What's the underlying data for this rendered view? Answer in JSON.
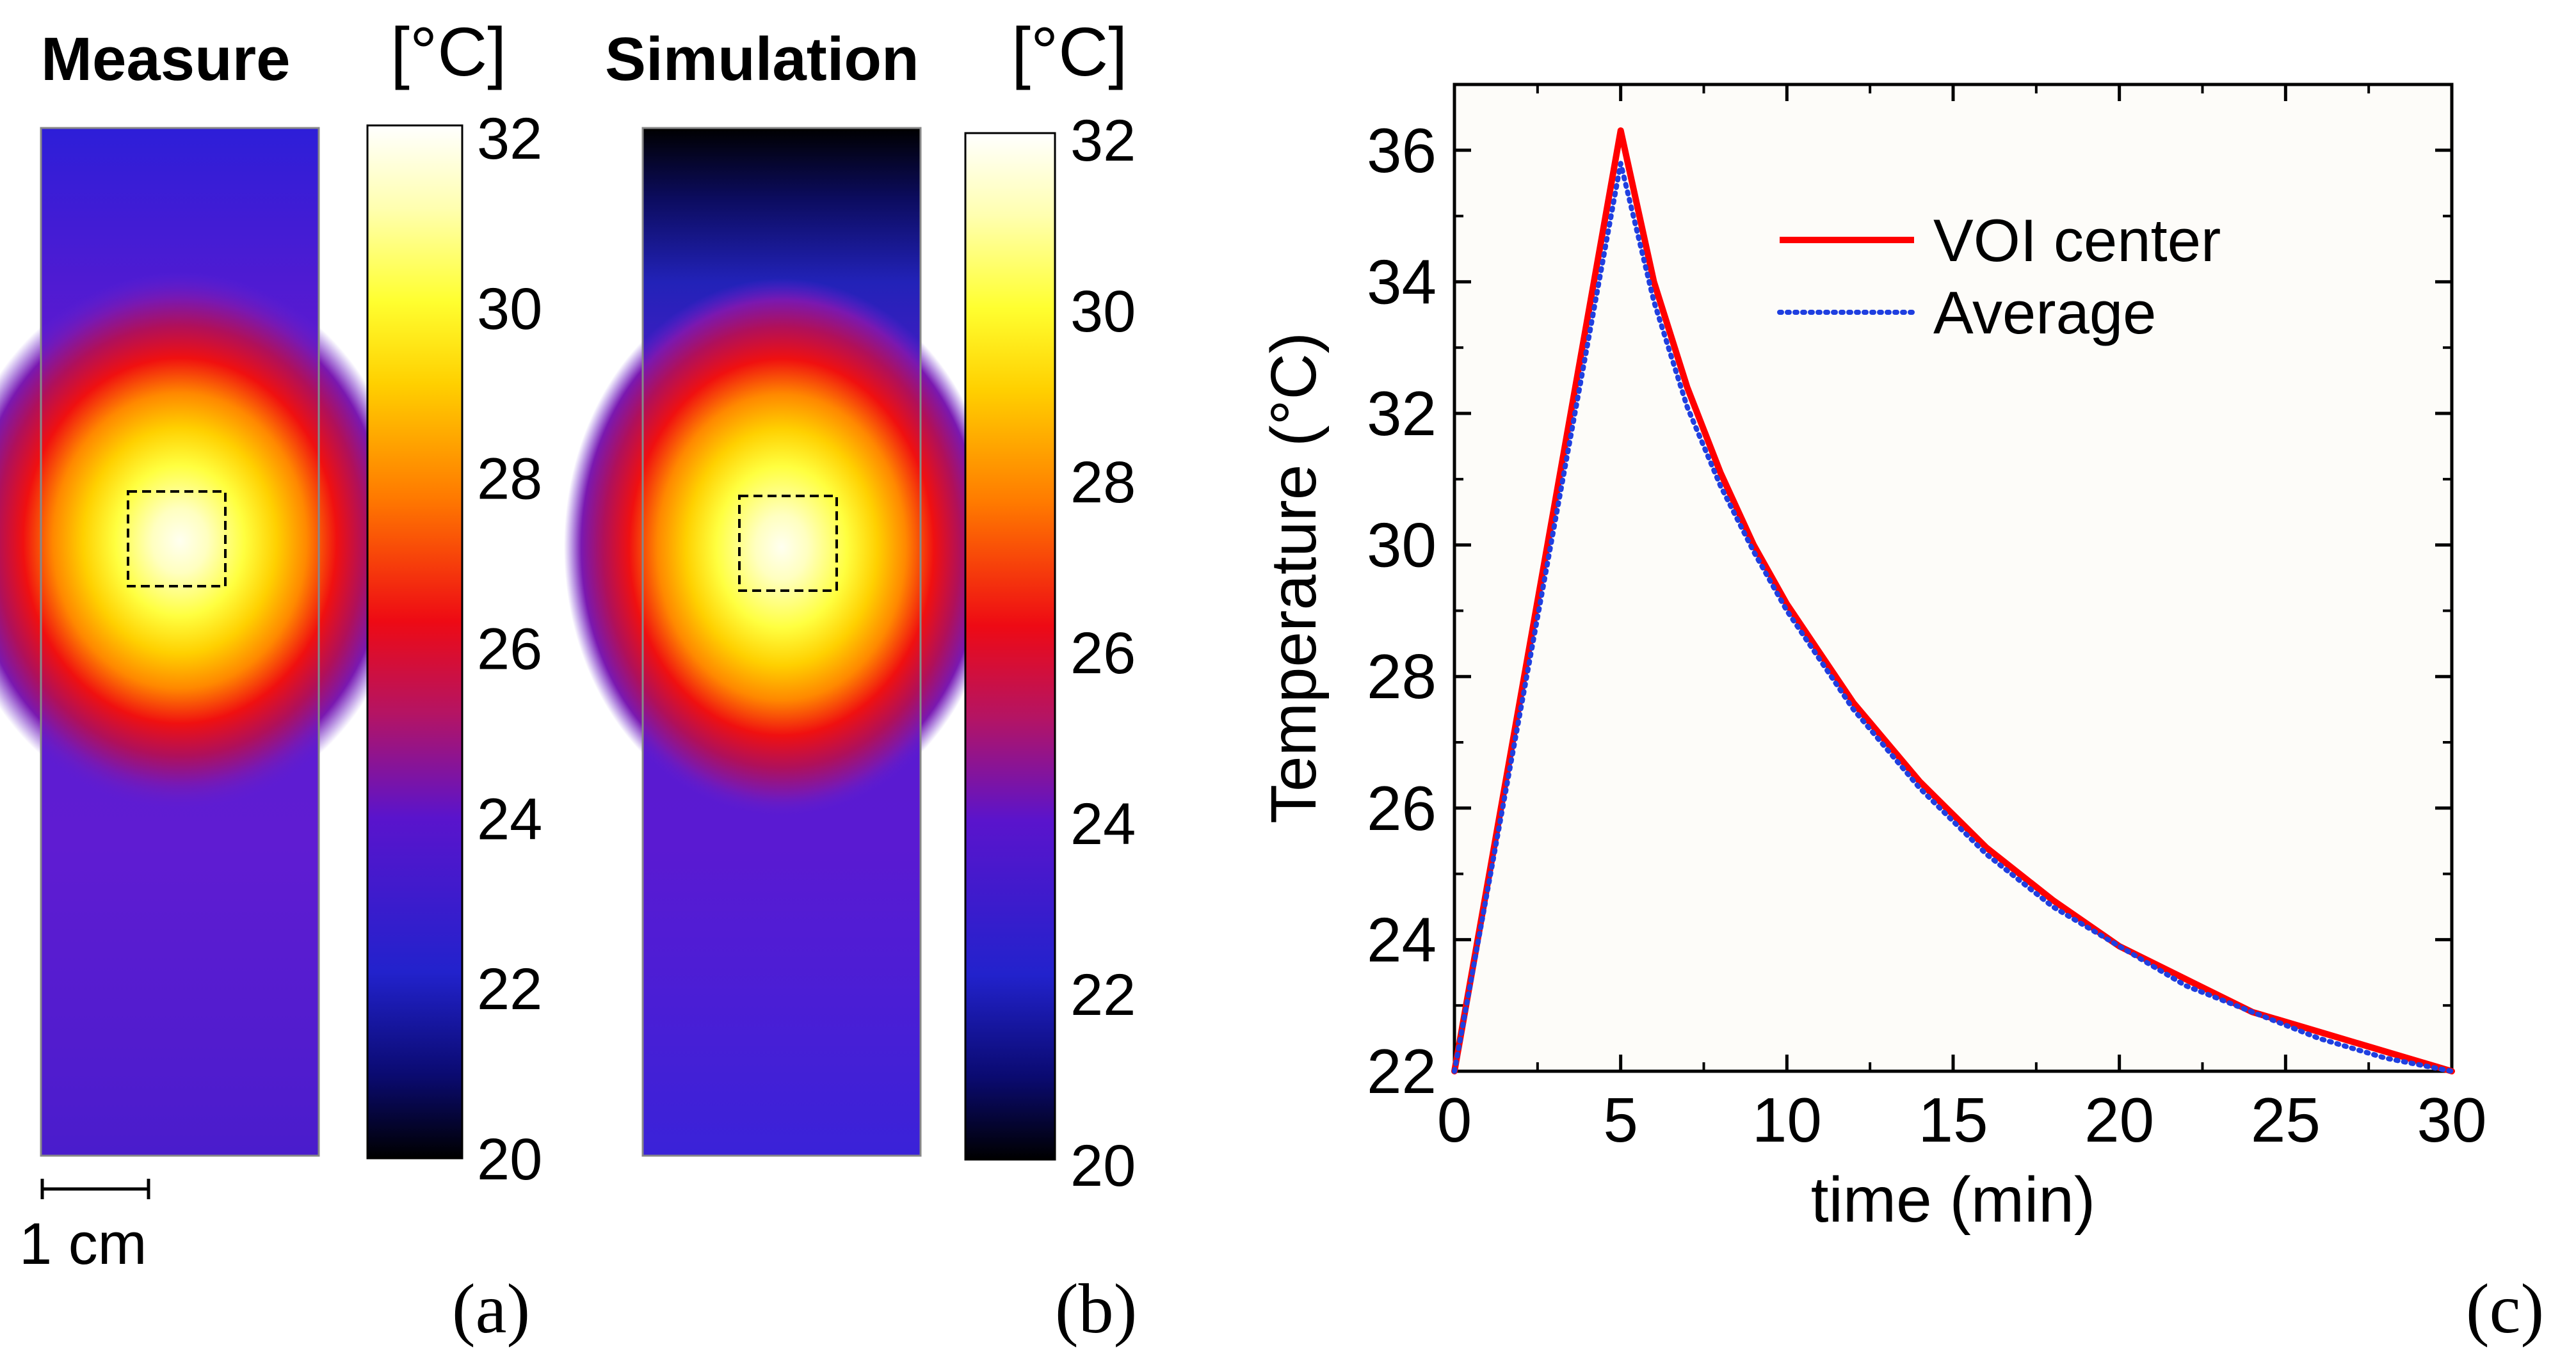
{
  "panel_a": {
    "title": "Measure",
    "unit_label": "[°C]",
    "panel_label": "(a)",
    "scale_bar_label": "1 cm"
  },
  "panel_b": {
    "title": "Simulation",
    "unit_label": "[°C]",
    "panel_label": "(b)"
  },
  "panel_c": {
    "panel_label": "(c)"
  },
  "colorbar": {
    "min": 20,
    "max": 32,
    "ticks": [
      "32",
      "30",
      "28",
      "26",
      "24",
      "22",
      "20"
    ],
    "colormap": "hot (black-blue-purple-red-orange-yellow-white)"
  },
  "colors": {
    "voi_center": "#ff0000",
    "average": "#1f3fe0",
    "frame": "#000000"
  },
  "chart_data": [
    {
      "type": "heatmap",
      "title": "Measure",
      "unit": "[°C]",
      "value_range": [
        20,
        32
      ],
      "peak_value": 32,
      "background_value": 23,
      "voi": "dashed square at heat center"
    },
    {
      "type": "heatmap",
      "title": "Simulation",
      "unit": "[°C]",
      "value_range": [
        20,
        32
      ],
      "peak_value": 32,
      "background_value": 22.5,
      "voi": "dashed square at heat center"
    },
    {
      "type": "line",
      "xlabel": "time (min)",
      "ylabel": "Temperature (°C)",
      "xlim": [
        0,
        30
      ],
      "ylim": [
        22,
        37
      ],
      "xticks": [
        "0",
        "5",
        "10",
        "15",
        "20",
        "25",
        "30"
      ],
      "yticks": [
        "22",
        "24",
        "26",
        "28",
        "30",
        "32",
        "34",
        "36"
      ],
      "legend_position": "top-right",
      "series": [
        {
          "name": "VOI center",
          "style": "solid",
          "x": [
            0,
            5,
            6,
            7,
            8,
            9,
            10,
            12,
            14,
            16,
            18,
            20,
            22,
            24,
            26,
            28,
            30
          ],
          "y": [
            22.0,
            36.3,
            34.0,
            32.4,
            31.1,
            30.0,
            29.1,
            27.6,
            26.4,
            25.4,
            24.6,
            23.9,
            23.4,
            22.9,
            22.6,
            22.3,
            22.0
          ]
        },
        {
          "name": "Average",
          "style": "dotted",
          "x": [
            0,
            5,
            6,
            7,
            8,
            9,
            10,
            12,
            14,
            16,
            18,
            20,
            22,
            24,
            26,
            28,
            30
          ],
          "y": [
            22.0,
            35.8,
            33.7,
            32.1,
            30.9,
            29.9,
            29.0,
            27.5,
            26.3,
            25.3,
            24.5,
            23.9,
            23.3,
            22.9,
            22.5,
            22.2,
            22.0
          ]
        }
      ]
    }
  ]
}
